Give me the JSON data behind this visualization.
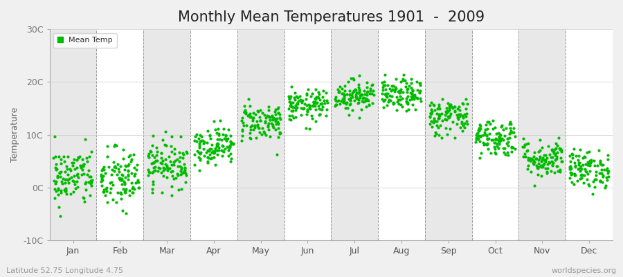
{
  "title": "Monthly Mean Temperatures 1901  -  2009",
  "ylabel": "Temperature",
  "subtitle_left": "Latitude 52.75 Longitude 4.75",
  "subtitle_right": "worldspecies.org",
  "legend_label": "Mean Temp",
  "marker_color": "#00bb00",
  "bg_color": "#f0f0f0",
  "plot_bg_white": "#ffffff",
  "plot_bg_gray": "#e8e8e8",
  "ylim": [
    -10,
    30
  ],
  "yticks": [
    -10,
    0,
    10,
    20,
    30
  ],
  "ytick_labels": [
    "-10C",
    "0C",
    "10C",
    "20C",
    "30C"
  ],
  "months": [
    "Jan",
    "Feb",
    "Mar",
    "Apr",
    "May",
    "Jun",
    "Jul",
    "Aug",
    "Sep",
    "Oct",
    "Nov",
    "Dec"
  ],
  "n_years": 109,
  "mean_temps": [
    2.0,
    1.5,
    4.5,
    8.0,
    12.5,
    15.5,
    17.5,
    17.5,
    13.5,
    9.5,
    5.5,
    3.5
  ],
  "std_temps": [
    2.8,
    3.0,
    2.2,
    1.8,
    1.8,
    1.5,
    1.5,
    1.5,
    1.8,
    1.8,
    1.8,
    1.8
  ],
  "title_fontsize": 15,
  "axis_label_fontsize": 9,
  "tick_fontsize": 9,
  "legend_fontsize": 8,
  "marker_size": 3
}
